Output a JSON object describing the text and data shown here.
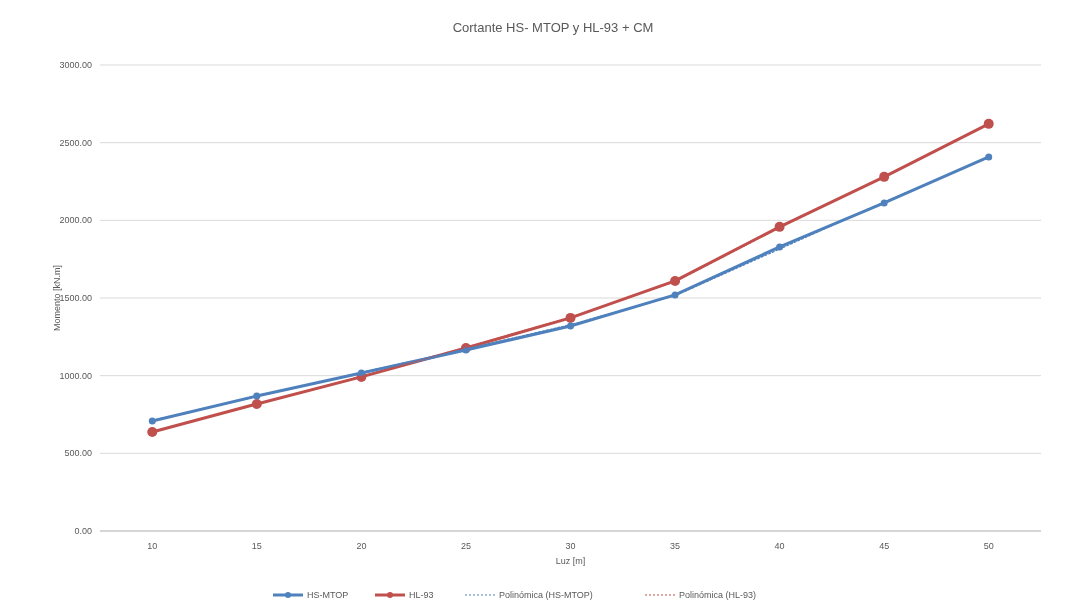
{
  "chart_data": {
    "type": "line",
    "title": "Cortante HS- MTOP y HL-93 + CM",
    "xlabel": "Luz [m]",
    "ylabel": "Momento [kN.m]",
    "categories": [
      "10",
      "15",
      "20",
      "25",
      "30",
      "35",
      "40",
      "45",
      "50"
    ],
    "ylim": [
      0,
      3000
    ],
    "yticks": [
      {
        "value": 0,
        "label": "0.00"
      },
      {
        "value": 500,
        "label": "500.00"
      },
      {
        "value": 1000,
        "label": "1000.00"
      },
      {
        "value": 1500,
        "label": "1500.00"
      },
      {
        "value": 2000,
        "label": "2000.00"
      },
      {
        "value": 2500,
        "label": "2500.00"
      },
      {
        "value": 3000,
        "label": "3000.00"
      }
    ],
    "grid": "y",
    "legend": "bottom",
    "marker": "circle",
    "line_style": "solid",
    "series": [
      {
        "name": "HS-MTOP",
        "color": "#4f81bd",
        "values": [
          708,
          869,
          1017,
          1165,
          1320,
          1520,
          1829,
          2112,
          2408
        ]
      },
      {
        "name": "HL-93",
        "color": "#c0504d",
        "values": [
          637,
          818,
          992,
          1178,
          1372,
          1610,
          1958,
          2280,
          2621
        ]
      },
      {
        "name": "Polinómica (HS-MTOP)",
        "color": "#4f81bd",
        "marker": "none",
        "line_style": "dotted",
        "values": [
          712,
          866,
          1020,
          1172,
          1328,
          1515,
          1815,
          2118,
          2405
        ]
      },
      {
        "name": "Polinómica (HL-93)",
        "color": "#c0504d",
        "marker": "none",
        "line_style": "dotted",
        "values": [
          640,
          815,
          996,
          1182,
          1376,
          1605,
          1953,
          2282,
          2618
        ]
      }
    ]
  }
}
